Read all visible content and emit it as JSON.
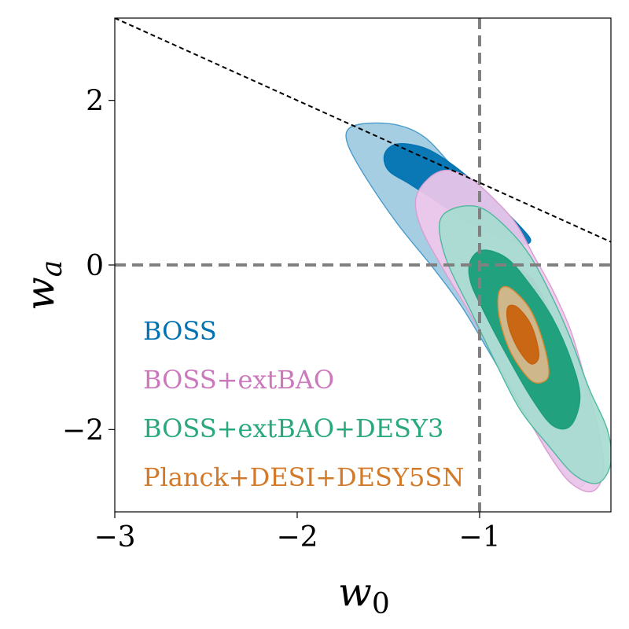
{
  "chart_data": {
    "type": "contour",
    "xlabel": "w",
    "xlabel_sub": "0",
    "ylabel": "w",
    "ylabel_sub": "a",
    "xlim": [
      -3.0,
      -0.28
    ],
    "ylim": [
      -3.0,
      3.0
    ],
    "x_ticks": [
      {
        "value": -3,
        "label": "−3"
      },
      {
        "value": -2,
        "label": "−2"
      },
      {
        "value": -1,
        "label": "−1"
      }
    ],
    "y_ticks": [
      {
        "value": 2,
        "label": "2"
      },
      {
        "value": 0,
        "label": "0"
      },
      {
        "value": -2,
        "label": "−2"
      }
    ],
    "reference_lines": [
      {
        "kind": "vertical",
        "value": -1,
        "style": "dashed",
        "color": "#808080"
      },
      {
        "kind": "horizontal",
        "value": 0,
        "style": "dashed",
        "color": "#808080"
      },
      {
        "kind": "boundary",
        "equation": "w0 + wa = 0",
        "points": [
          [
            -3.0,
            3.0
          ],
          [
            -0.28,
            0.28
          ]
        ],
        "style": "dashed",
        "color": "#000000"
      }
    ],
    "legend_position": "lower-left",
    "series": [
      {
        "name": "BOSS",
        "color": "#0173B2",
        "contours": [
          {
            "level": "2sigma",
            "fill": "#9ECAE1",
            "stroke": "#4A9CCB",
            "points": [
              [
                -1.72,
                1.65
              ],
              [
                -1.62,
                1.72
              ],
              [
                -1.45,
                1.7
              ],
              [
                -1.3,
                1.55
              ],
              [
                -1.15,
                1.2
              ],
              [
                -1.0,
                0.82
              ],
              [
                -0.85,
                0.45
              ],
              [
                -0.72,
                0.05
              ],
              [
                -0.62,
                -0.35
              ],
              [
                -0.52,
                -0.8
              ],
              [
                -0.45,
                -1.3
              ],
              [
                -0.42,
                -1.9
              ],
              [
                -0.4,
                -2.45
              ],
              [
                -0.45,
                -2.7
              ],
              [
                -0.55,
                -2.5
              ],
              [
                -0.7,
                -2.0
              ],
              [
                -0.82,
                -1.55
              ],
              [
                -0.95,
                -1.05
              ],
              [
                -1.1,
                -0.5
              ],
              [
                -1.25,
                -0.05
              ],
              [
                -1.45,
                0.5
              ],
              [
                -1.62,
                1.05
              ],
              [
                -1.72,
                1.45
              ]
            ]
          },
          {
            "level": "1sigma",
            "fill": "#0173B2",
            "stroke": "#0173B2",
            "points": [
              [
                -1.52,
                1.35
              ],
              [
                -1.45,
                1.47
              ],
              [
                -1.3,
                1.42
              ],
              [
                -1.15,
                1.22
              ],
              [
                -1.0,
                0.95
              ],
              [
                -0.88,
                0.7
              ],
              [
                -0.77,
                0.45
              ],
              [
                -0.72,
                0.3
              ],
              [
                -0.77,
                0.25
              ],
              [
                -0.9,
                0.35
              ],
              [
                -1.05,
                0.5
              ],
              [
                -1.22,
                0.75
              ],
              [
                -1.38,
                0.98
              ],
              [
                -1.5,
                1.15
              ]
            ]
          }
        ]
      },
      {
        "name": "BOSS+extBAO",
        "color": "#CC78BC",
        "contours": [
          {
            "level": "2sigma",
            "fill": "#F0C8EC",
            "stroke": "#D99ED2",
            "points": [
              [
                -1.35,
                0.8
              ],
              [
                -1.28,
                1.05
              ],
              [
                -1.18,
                1.15
              ],
              [
                -1.05,
                1.05
              ],
              [
                -0.92,
                0.8
              ],
              [
                -0.8,
                0.5
              ],
              [
                -0.7,
                0.1
              ],
              [
                -0.6,
                -0.3
              ],
              [
                -0.5,
                -0.8
              ],
              [
                -0.42,
                -1.4
              ],
              [
                -0.35,
                -2.0
              ],
              [
                -0.32,
                -2.5
              ],
              [
                -0.38,
                -2.75
              ],
              [
                -0.5,
                -2.65
              ],
              [
                -0.62,
                -2.3
              ],
              [
                -0.75,
                -1.8
              ],
              [
                -0.9,
                -1.2
              ],
              [
                -1.05,
                -0.6
              ],
              [
                -1.2,
                -0.05
              ],
              [
                -1.32,
                0.45
              ]
            ]
          },
          {
            "level": "1sigma",
            "fill": "#CC78BC",
            "stroke": "#CC78BC",
            "points": [
              [
                -0.88,
                -0.2
              ],
              [
                -0.82,
                -0.05
              ],
              [
                -0.72,
                -0.15
              ],
              [
                -0.62,
                -0.55
              ],
              [
                -0.55,
                -1.0
              ],
              [
                -0.55,
                -1.5
              ],
              [
                -0.62,
                -1.55
              ],
              [
                -0.72,
                -1.2
              ],
              [
                -0.82,
                -0.75
              ],
              [
                -0.88,
                -0.45
              ]
            ]
          }
        ]
      },
      {
        "name": "BOSS+extBAO+DESY3",
        "color": "#029E73",
        "contours": [
          {
            "level": "2sigma",
            "fill": "#A6DCD0",
            "stroke": "#50B89E",
            "points": [
              [
                -1.22,
                0.5
              ],
              [
                -1.15,
                0.68
              ],
              [
                -1.0,
                0.7
              ],
              [
                -0.85,
                0.45
              ],
              [
                -0.72,
                0.1
              ],
              [
                -0.6,
                -0.4
              ],
              [
                -0.5,
                -0.9
              ],
              [
                -0.4,
                -1.5
              ],
              [
                -0.3,
                -2.0
              ],
              [
                -0.28,
                -2.4
              ],
              [
                -0.35,
                -2.65
              ],
              [
                -0.48,
                -2.55
              ],
              [
                -0.62,
                -2.2
              ],
              [
                -0.78,
                -1.75
              ],
              [
                -0.92,
                -1.15
              ],
              [
                -1.05,
                -0.55
              ],
              [
                -1.18,
                0.05
              ]
            ]
          },
          {
            "level": "1sigma",
            "fill": "#1A9E7A",
            "stroke": "#1A9E7A",
            "points": [
              [
                -1.05,
                0.05
              ],
              [
                -0.98,
                0.18
              ],
              [
                -0.85,
                0.08
              ],
              [
                -0.72,
                -0.25
              ],
              [
                -0.6,
                -0.65
              ],
              [
                -0.5,
                -1.15
              ],
              [
                -0.45,
                -1.6
              ],
              [
                -0.5,
                -1.95
              ],
              [
                -0.6,
                -1.95
              ],
              [
                -0.72,
                -1.6
              ],
              [
                -0.85,
                -1.1
              ],
              [
                -0.98,
                -0.55
              ],
              [
                -1.05,
                -0.2
              ]
            ]
          }
        ]
      },
      {
        "name": "Planck+DESI+DESY5SN",
        "color": "#DE8F05",
        "contours": [
          {
            "level": "2sigma",
            "fill": "#DDB98C",
            "stroke": "#D98A35",
            "points": [
              [
                -0.88,
                -0.28
              ],
              [
                -0.82,
                -0.3
              ],
              [
                -0.72,
                -0.55
              ],
              [
                -0.65,
                -0.95
              ],
              [
                -0.62,
                -1.3
              ],
              [
                -0.65,
                -1.42
              ],
              [
                -0.72,
                -1.4
              ],
              [
                -0.82,
                -1.1
              ],
              [
                -0.88,
                -0.75
              ],
              [
                -0.9,
                -0.45
              ]
            ]
          },
          {
            "level": "1sigma",
            "fill": "#C8620E",
            "stroke": "#C8620E",
            "points": [
              [
                -0.84,
                -0.5
              ],
              [
                -0.79,
                -0.52
              ],
              [
                -0.72,
                -0.72
              ],
              [
                -0.68,
                -1.0
              ],
              [
                -0.68,
                -1.15
              ],
              [
                -0.72,
                -1.2
              ],
              [
                -0.78,
                -1.05
              ],
              [
                -0.83,
                -0.82
              ],
              [
                -0.85,
                -0.62
              ]
            ]
          }
        ]
      }
    ],
    "legend": [
      {
        "label": "BOSS",
        "color": "#0173B2"
      },
      {
        "label": "BOSS+extBAO",
        "color": "#CC78BC"
      },
      {
        "label": "BOSS+extBAO+DESY3",
        "color": "#29A880"
      },
      {
        "label": "Planck+DESI+DESY5SN",
        "color": "#D37A2A"
      }
    ]
  }
}
